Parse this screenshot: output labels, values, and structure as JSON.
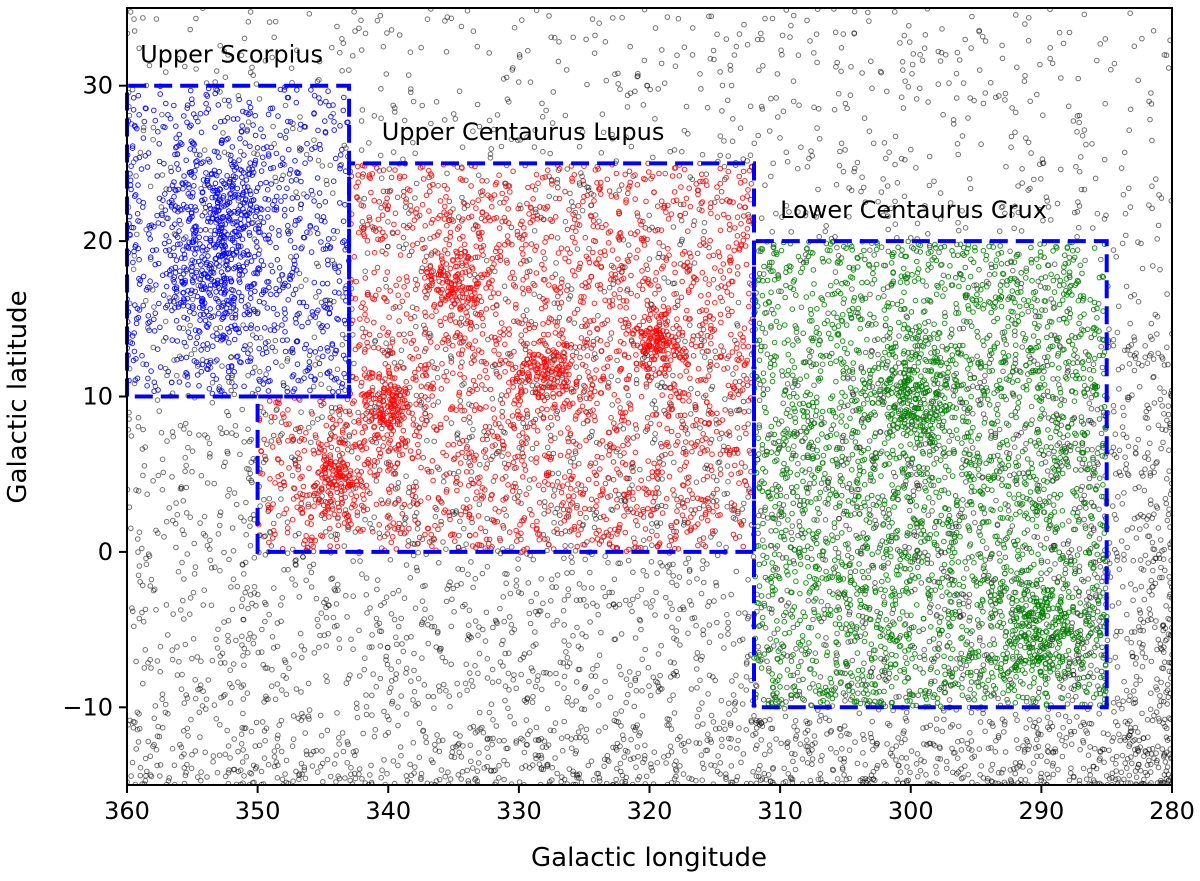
{
  "chart_data": {
    "type": "scatter",
    "xlabel": "Galactic longitude",
    "ylabel": "Galactic latitude",
    "xlim": [
      360,
      280
    ],
    "ylim": [
      -15,
      35
    ],
    "x_reversed": true,
    "xticks": [
      360,
      350,
      340,
      330,
      320,
      310,
      300,
      290,
      280
    ],
    "xtick_labels": [
      "360",
      "350",
      "340",
      "330",
      "320",
      "310",
      "300",
      "290",
      "280"
    ],
    "yticks": [
      -10,
      0,
      10,
      20,
      30
    ],
    "ytick_labels": [
      "−10",
      "0",
      "10",
      "20",
      "30"
    ],
    "grid": false,
    "marker": "open circle",
    "series": [
      {
        "color": "#000000",
        "description_key": "field",
        "region": "all",
        "density_note": "denser toward low latitude"
      },
      {
        "color": "#0000ff",
        "region": "Upper Scorpius",
        "clusters": [
          {
            "l": 353.0,
            "b": 17.5
          },
          {
            "l": 352.5,
            "b": 22.0
          }
        ]
      },
      {
        "color": "#ff0000",
        "region": "Upper Centaurus Lupus",
        "clusters": [
          {
            "l": 344.0,
            "b": 4.5
          },
          {
            "l": 340.0,
            "b": 9.5
          },
          {
            "l": 319.5,
            "b": 13.5
          },
          {
            "l": 335.0,
            "b": 17.0
          },
          {
            "l": 328.0,
            "b": 11.5
          }
        ]
      },
      {
        "color": "#008000",
        "region": "Lower Centaurus Crux",
        "clusters": [
          {
            "l": 290.0,
            "b": -5.0
          },
          {
            "l": 300.0,
            "b": 10.0
          }
        ]
      }
    ],
    "regions": [
      {
        "name": "Upper Scorpius",
        "color": "#0000ff",
        "polygon": [
          [
            360,
            10
          ],
          [
            360,
            30
          ],
          [
            343,
            30
          ],
          [
            343,
            10
          ]
        ],
        "label_at": [
          359.0,
          31.5
        ]
      },
      {
        "name": "Upper Centaurus Lupus",
        "color": "#0000ff",
        "polygon": [
          [
            350,
            0
          ],
          [
            350,
            10
          ],
          [
            343,
            10
          ],
          [
            343,
            25
          ],
          [
            312,
            25
          ],
          [
            312,
            0
          ]
        ],
        "label_at": [
          340.5,
          26.5
        ]
      },
      {
        "name": "Lower Centaurus Crux",
        "color": "#0000ff",
        "polygon": [
          [
            312,
            -10
          ],
          [
            312,
            20
          ],
          [
            285,
            20
          ],
          [
            285,
            -10
          ]
        ],
        "label_at": [
          310.0,
          21.5
        ]
      }
    ]
  }
}
